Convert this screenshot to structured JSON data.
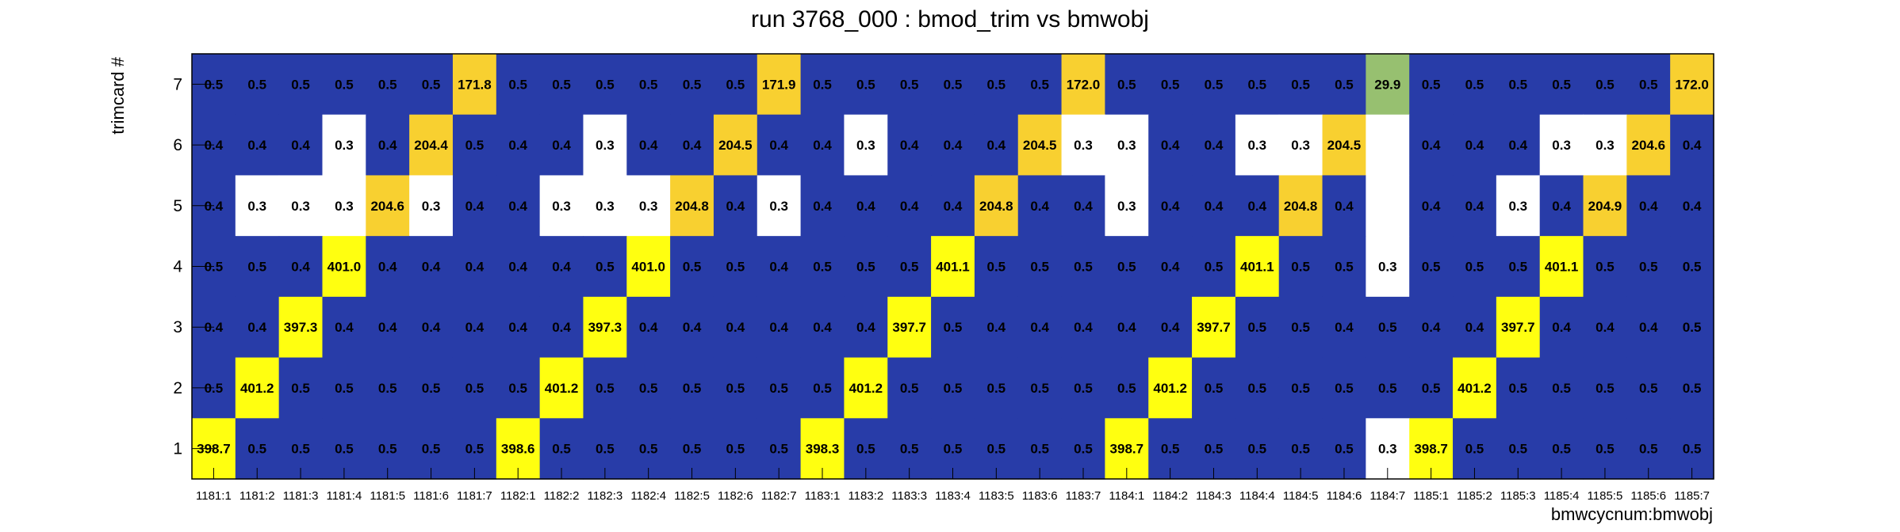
{
  "chart_data": {
    "type": "heatmap",
    "title": "run 3768_000 : bmod_trim vs bmwobj",
    "xlabel": "bmwcycnum:bmwobj",
    "ylabel": "trimcard #",
    "x_categories": [
      "1181:1",
      "1181:2",
      "1181:3",
      "1181:4",
      "1181:5",
      "1181:6",
      "1181:7",
      "1182:1",
      "1182:2",
      "1182:3",
      "1182:4",
      "1182:5",
      "1182:6",
      "1182:7",
      "1183:1",
      "1183:2",
      "1183:3",
      "1183:4",
      "1183:5",
      "1183:6",
      "1183:7",
      "1184:1",
      "1184:2",
      "1184:3",
      "1184:4",
      "1184:5",
      "1184:6",
      "1184:7",
      "1185:1",
      "1185:2",
      "1185:3",
      "1185:4",
      "1185:5",
      "1185:6",
      "1185:7"
    ],
    "y_categories": [
      "1",
      "2",
      "3",
      "4",
      "5",
      "6",
      "7"
    ],
    "rows": [
      {
        "y": "7",
        "values": [
          "0.5",
          "0.5",
          "0.5",
          "0.5",
          "0.5",
          "0.5",
          "171.8",
          "0.5",
          "0.5",
          "0.5",
          "0.5",
          "0.5",
          "0.5",
          "171.9",
          "0.5",
          "0.5",
          "0.5",
          "0.5",
          "0.5",
          "0.5",
          "172.0",
          "0.5",
          "0.5",
          "0.5",
          "0.5",
          "0.5",
          "0.5",
          "29.9",
          "0.5",
          "0.5",
          "0.5",
          "0.5",
          "0.5",
          "0.5",
          "172.0"
        ]
      },
      {
        "y": "6",
        "values": [
          "0.4",
          "0.4",
          "0.4",
          "0.3",
          "0.4",
          "204.4",
          "0.5",
          "0.4",
          "0.4",
          "0.3",
          "0.4",
          "0.4",
          "204.5",
          "0.4",
          "0.4",
          "0.3",
          "0.4",
          "0.4",
          "0.4",
          "204.5",
          "0.3",
          "0.3",
          "0.4",
          "0.4",
          "0.3",
          "0.3",
          "204.5",
          "",
          "0.4",
          "0.4",
          "0.4",
          "0.3",
          "0.3",
          "204.6",
          "0.4"
        ]
      },
      {
        "y": "5",
        "values": [
          "0.4",
          "0.3",
          "0.3",
          "0.3",
          "204.6",
          "0.3",
          "0.4",
          "0.4",
          "0.3",
          "0.3",
          "0.3",
          "204.8",
          "0.4",
          "0.3",
          "0.4",
          "0.4",
          "0.4",
          "0.4",
          "204.8",
          "0.4",
          "0.4",
          "0.3",
          "0.4",
          "0.4",
          "0.4",
          "204.8",
          "0.4",
          "",
          "0.4",
          "0.4",
          "0.3",
          "0.4",
          "204.9",
          "0.4",
          "0.4"
        ]
      },
      {
        "y": "4",
        "values": [
          "0.5",
          "0.5",
          "0.4",
          "401.0",
          "0.4",
          "0.4",
          "0.4",
          "0.4",
          "0.4",
          "0.5",
          "401.0",
          "0.5",
          "0.5",
          "0.4",
          "0.5",
          "0.5",
          "0.5",
          "401.1",
          "0.5",
          "0.5",
          "0.5",
          "0.5",
          "0.4",
          "0.5",
          "401.1",
          "0.5",
          "0.5",
          "0.3",
          "0.5",
          "0.5",
          "0.5",
          "401.1",
          "0.5",
          "0.5",
          "0.5"
        ]
      },
      {
        "y": "3",
        "values": [
          "0.4",
          "0.4",
          "397.3",
          "0.4",
          "0.4",
          "0.4",
          "0.4",
          "0.4",
          "0.4",
          "397.3",
          "0.4",
          "0.4",
          "0.4",
          "0.4",
          "0.4",
          "0.4",
          "397.7",
          "0.5",
          "0.4",
          "0.4",
          "0.4",
          "0.4",
          "0.4",
          "397.7",
          "0.5",
          "0.5",
          "0.4",
          "0.5",
          "0.4",
          "0.4",
          "397.7",
          "0.4",
          "0.4",
          "0.4",
          "0.5"
        ]
      },
      {
        "y": "2",
        "values": [
          "0.5",
          "401.2",
          "0.5",
          "0.5",
          "0.5",
          "0.5",
          "0.5",
          "0.5",
          "401.2",
          "0.5",
          "0.5",
          "0.5",
          "0.5",
          "0.5",
          "0.5",
          "401.2",
          "0.5",
          "0.5",
          "0.5",
          "0.5",
          "0.5",
          "0.5",
          "401.2",
          "0.5",
          "0.5",
          "0.5",
          "0.5",
          "0.5",
          "0.5",
          "401.2",
          "0.5",
          "0.5",
          "0.5",
          "0.5",
          "0.5"
        ]
      },
      {
        "y": "1",
        "values": [
          "398.7",
          "0.5",
          "0.5",
          "0.5",
          "0.5",
          "0.5",
          "0.5",
          "398.6",
          "0.5",
          "0.5",
          "0.5",
          "0.5",
          "0.5",
          "0.5",
          "398.3",
          "0.5",
          "0.5",
          "0.5",
          "0.5",
          "0.5",
          "0.5",
          "398.7",
          "0.5",
          "0.5",
          "0.5",
          "0.5",
          "0.5",
          "0.3",
          "398.7",
          "0.5",
          "0.5",
          "0.5",
          "0.5",
          "0.5",
          "0.5"
        ]
      }
    ],
    "colors": {
      "low": "#283ca8",
      "lowest": "#ffffff",
      "mid": "#97c070",
      "high": "#f8d030",
      "highest": "#ffff10"
    },
    "grid": false
  }
}
